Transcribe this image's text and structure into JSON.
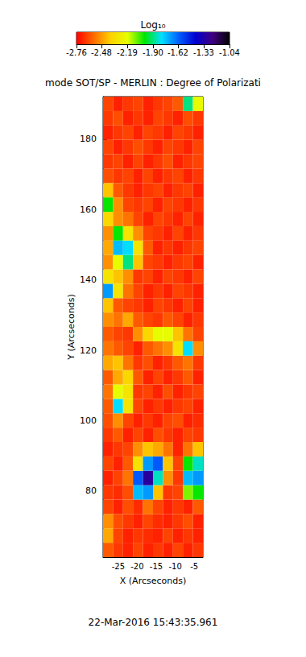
{
  "chart_data": {
    "type": "heatmap",
    "title": "mode SOT/SP - MERLIN : Degree of Polarizati",
    "x_label": "X (Arcseconds)",
    "y_label": "Y (Arcseconds)",
    "date": "22-Mar-2016 15:43:35.961",
    "xlim": [
      -29,
      -2.7
    ],
    "ylim": [
      61.2,
      192.1
    ],
    "xticks": [
      -25,
      -20,
      -15,
      -10,
      -5
    ],
    "yticks": [
      80,
      100,
      120,
      140,
      160,
      180
    ],
    "x": [
      -27.69,
      -25.06,
      -22.43,
      -19.8,
      -17.17,
      -14.54,
      -11.91,
      -9.28,
      -6.65,
      -4.02
    ],
    "y": [
      63.25,
      67.34,
      71.43,
      75.52,
      79.61,
      83.7,
      87.79,
      91.88,
      95.97,
      100.06,
      104.15,
      108.24,
      112.33,
      116.42,
      120.51,
      124.6,
      128.69,
      132.78,
      136.87,
      140.96,
      145.05,
      149.14,
      153.23,
      157.32,
      161.41,
      165.5,
      169.59,
      173.68,
      177.77,
      181.86,
      185.95,
      190.04
    ],
    "cells": [
      [
        -2.6,
        -2.66,
        -2.7,
        -2.64,
        -2.7,
        -2.66,
        -2.7,
        -2.64,
        -2.7,
        -2.66
      ],
      [
        -2.45,
        -2.64,
        -2.7,
        -2.66,
        -2.68,
        -2.7,
        -2.64,
        -2.7,
        -2.66,
        -2.7
      ],
      [
        -2.5,
        -2.62,
        -2.66,
        -2.7,
        -2.64,
        -2.68,
        -2.7,
        -2.66,
        -2.62,
        -2.7
      ],
      [
        -2.64,
        -2.7,
        -2.62,
        -2.68,
        -2.55,
        -2.64,
        -2.7,
        -2.66,
        -2.7,
        -2.6
      ],
      [
        -2.66,
        -2.68,
        -2.62,
        -1.75,
        -1.7,
        -2.4,
        -2.66,
        -2.64,
        -2.1,
        -2.0
      ],
      [
        -2.7,
        -2.64,
        -2.55,
        -1.6,
        -1.3,
        -1.85,
        -2.5,
        -2.66,
        -1.75,
        -1.7
      ],
      [
        -2.64,
        -2.7,
        -2.6,
        -2.3,
        -1.7,
        -1.6,
        -2.4,
        -2.64,
        -2.0,
        -1.85
      ],
      [
        -2.7,
        -2.66,
        -2.64,
        -2.5,
        -2.4,
        -2.45,
        -2.55,
        -2.7,
        -2.55,
        -2.4
      ],
      [
        -2.66,
        -2.6,
        -2.7,
        -2.64,
        -2.7,
        -2.62,
        -2.66,
        -2.7,
        -2.64,
        -2.66
      ],
      [
        -2.62,
        -2.5,
        -2.64,
        -2.7,
        -2.66,
        -2.7,
        -2.64,
        -2.62,
        -2.7,
        -2.68
      ],
      [
        -2.6,
        -1.8,
        -2.3,
        -2.64,
        -2.7,
        -2.66,
        -2.7,
        -2.66,
        -2.64,
        -2.7
      ],
      [
        -2.55,
        -2.2,
        -2.3,
        -2.66,
        -2.64,
        -2.7,
        -2.62,
        -2.7,
        -2.66,
        -2.64
      ],
      [
        -2.6,
        -2.45,
        -2.35,
        -2.6,
        -2.7,
        -2.64,
        -2.7,
        -2.66,
        -2.6,
        -2.7
      ],
      [
        -2.45,
        -2.4,
        -2.55,
        -2.66,
        -2.62,
        -2.7,
        -2.66,
        -2.6,
        -2.55,
        -2.66
      ],
      [
        -2.55,
        -2.6,
        -2.64,
        -2.7,
        -2.6,
        -2.55,
        -2.5,
        -2.3,
        -1.8,
        -2.5
      ],
      [
        -2.6,
        -2.64,
        -2.66,
        -2.5,
        -2.35,
        -2.2,
        -2.2,
        -2.4,
        -2.55,
        -2.64
      ],
      [
        -2.5,
        -2.55,
        -2.45,
        -2.6,
        -2.64,
        -2.66,
        -2.6,
        -2.64,
        -2.7,
        -2.66
      ],
      [
        -2.4,
        -2.6,
        -2.64,
        -2.66,
        -2.7,
        -2.64,
        -2.66,
        -2.7,
        -2.64,
        -2.7
      ],
      [
        -1.7,
        -2.3,
        -2.55,
        -2.64,
        -2.7,
        -2.66,
        -2.7,
        -2.64,
        -2.66,
        -2.7
      ],
      [
        -2.3,
        -2.4,
        -2.5,
        -2.66,
        -2.64,
        -2.7,
        -2.64,
        -2.66,
        -2.7,
        -2.64
      ],
      [
        -2.5,
        -2.2,
        -1.9,
        -2.4,
        -2.64,
        -2.66,
        -2.7,
        -2.66,
        -2.64,
        -2.7
      ],
      [
        -2.45,
        -1.75,
        -1.8,
        -2.3,
        -2.6,
        -2.7,
        -2.66,
        -2.7,
        -2.66,
        -2.64
      ],
      [
        -2.5,
        -2.0,
        -2.3,
        -2.5,
        -2.64,
        -2.66,
        -2.7,
        -2.64,
        -2.7,
        -2.66
      ],
      [
        -2.35,
        -2.5,
        -2.55,
        -2.64,
        -2.7,
        -2.64,
        -2.66,
        -2.7,
        -2.64,
        -2.7
      ],
      [
        -2.0,
        -2.5,
        -2.64,
        -2.66,
        -2.64,
        -2.7,
        -2.64,
        -2.66,
        -2.7,
        -2.66
      ],
      [
        -2.4,
        -2.6,
        -2.66,
        -2.7,
        -2.66,
        -2.64,
        -2.7,
        -2.66,
        -2.64,
        -2.7
      ],
      [
        -2.62,
        -2.66,
        -2.64,
        -2.7,
        -2.64,
        -2.7,
        -2.66,
        -2.64,
        -2.7,
        -2.66
      ],
      [
        -2.66,
        -2.64,
        -2.7,
        -2.64,
        -2.7,
        -2.66,
        -2.62,
        -2.7,
        -2.66,
        -2.64
      ],
      [
        -2.64,
        -2.7,
        -2.66,
        -2.62,
        -2.66,
        -2.7,
        -2.64,
        -2.66,
        -2.7,
        -2.64
      ],
      [
        -2.7,
        -2.66,
        -2.64,
        -2.7,
        -2.64,
        -2.66,
        -2.7,
        -2.64,
        -2.66,
        -2.7
      ],
      [
        -2.66,
        -2.62,
        -2.7,
        -2.66,
        -2.7,
        -2.64,
        -2.66,
        -2.7,
        -2.62,
        -2.66
      ],
      [
        -2.64,
        -2.7,
        -2.66,
        -2.64,
        -2.7,
        -2.66,
        -2.64,
        -2.6,
        -1.9,
        -2.2
      ]
    ],
    "colorbar": {
      "label": "Log₁₀",
      "range": [
        -2.76,
        -1.04
      ],
      "ticks": [
        -2.76,
        -2.48,
        -2.19,
        {
          "value": -1.9,
          "label": "-1.90"
        },
        -1.62,
        -1.33,
        -1.04
      ]
    }
  }
}
